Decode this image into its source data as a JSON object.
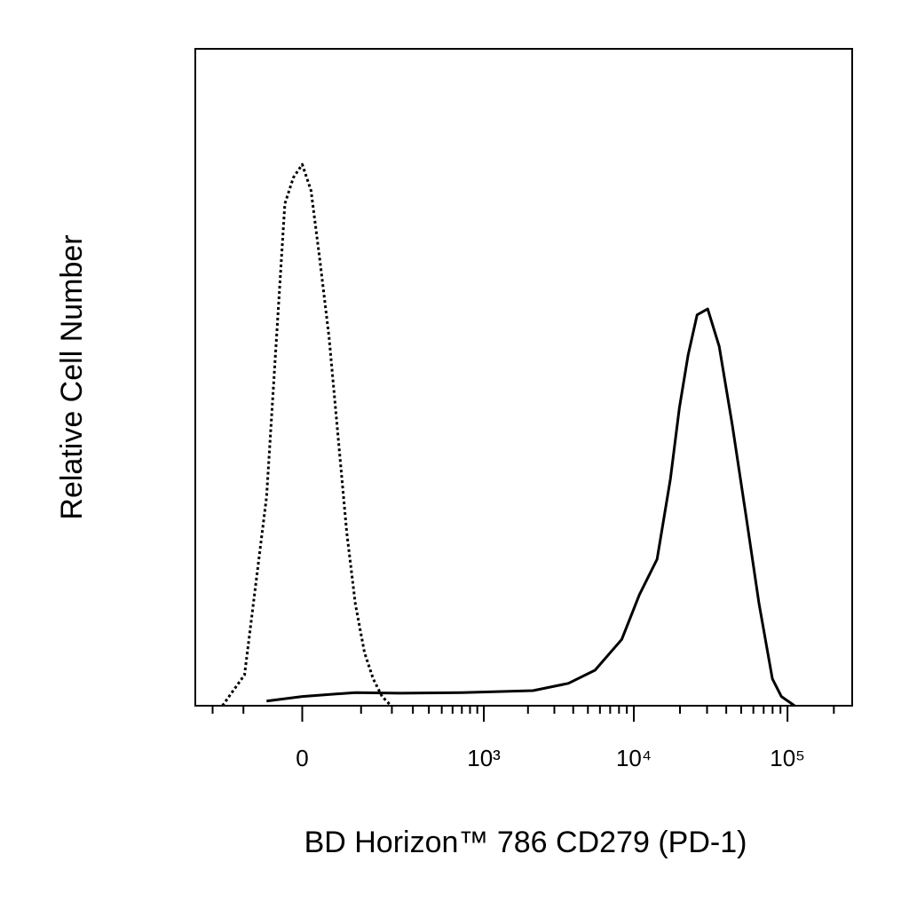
{
  "chart_data": {
    "type": "line",
    "xlabel": "BD Horizon™ 786 CD279 (PD-1)",
    "ylabel": "Relative Cell Number",
    "xscale": "biexponential",
    "xlim": [
      -280,
      263000
    ],
    "ylim": [
      0,
      100
    ],
    "xticks": [
      0,
      {
        "value": 1000,
        "label": "10³"
      },
      {
        "value": 10000,
        "label": "10⁴"
      },
      {
        "value": 100000,
        "label": "10⁵"
      }
    ],
    "xminorticks": [
      -200,
      -100,
      100,
      200,
      300,
      400,
      500,
      600,
      700,
      800,
      900,
      2000,
      3000,
      4000,
      5000,
      6000,
      7000,
      8000,
      9000,
      20000,
      30000,
      40000,
      50000,
      60000,
      70000,
      80000,
      90000,
      200000
    ],
    "series": [
      {
        "color": "#000000",
        "linestyle": "dotted",
        "x": [
          -163,
          -97,
          -50,
          -21,
          -10,
          0,
          10,
          21,
          35,
          50,
          67,
          86,
          109,
          134,
          163,
          197
        ],
        "values": [
          0,
          4.7,
          31.8,
          76.4,
          80.4,
          82.4,
          78.4,
          68.2,
          56.1,
          41.2,
          26.4,
          15.5,
          8.1,
          4.1,
          1.4,
          0
        ]
      },
      {
        "color": "#000000",
        "linestyle": "solid",
        "x": [
          -50,
          0,
          86,
          234,
          701,
          2160,
          3715,
          5568,
          8330,
          10870,
          14190,
          17320,
          19800,
          22590,
          25840,
          30290,
          36000,
          43900,
          53600,
          65400,
          79800,
          91200,
          111200
        ],
        "values": [
          0.7,
          1.4,
          2.0,
          1.9,
          2.0,
          2.3,
          3.4,
          5.4,
          10.1,
          16.9,
          22.3,
          34.5,
          45.3,
          53.4,
          59.5,
          60.4,
          54.7,
          42.6,
          29.1,
          15.5,
          4.1,
          1.4,
          0
        ]
      }
    ]
  }
}
